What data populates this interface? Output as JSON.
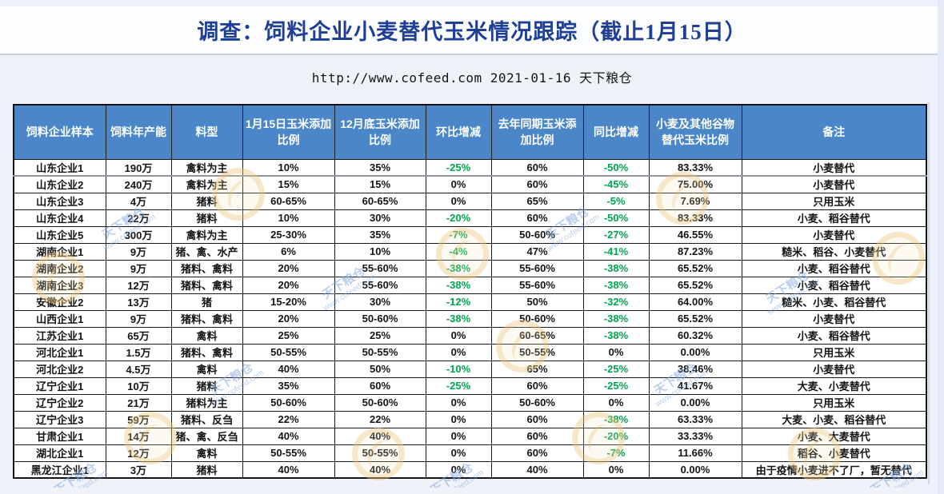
{
  "page": {
    "title": "调查：饲料企业小麦替代玉米情况跟踪（截止1月15日）",
    "subtitle": "http://www.cofeed.com  2021-01-16  天下粮仓"
  },
  "watermark": {
    "brand": "天下粮仓",
    "url": "www.cofeed.com"
  },
  "colors": {
    "header_bg": "#4A86C8",
    "negative_green": "#00A550",
    "title_blue": "#1E3F94"
  },
  "table": {
    "headers": [
      "饲料企业样本",
      "饲料年产能",
      "料型",
      "1月15日玉米添加比例",
      "12月底玉米添加比例",
      "环比增减",
      "去年同期玉米添加比例",
      "同比增减",
      "小麦及其他谷物替代玉米比例",
      "备注"
    ],
    "rows": [
      [
        "山东企业1",
        "190万",
        "禽料为主",
        "10%",
        "35%",
        "-25%",
        "60%",
        "-50%",
        "83.33%",
        "小麦替代"
      ],
      [
        "山东企业2",
        "240万",
        "禽料为主",
        "15%",
        "15%",
        "0%",
        "60%",
        "-45%",
        "75.00%",
        "小麦替代"
      ],
      [
        "山东企业3",
        "4万",
        "猪料",
        "60-65%",
        "60-65%",
        "0%",
        "65%",
        "-5%",
        "7.69%",
        "只用玉米"
      ],
      [
        "山东企业4",
        "22万",
        "猪料",
        "10%",
        "30%",
        "-20%",
        "60%",
        "-50%",
        "83.33%",
        "小麦、稻谷替代"
      ],
      [
        "山东企业5",
        "300万",
        "禽料为主",
        "25-30%",
        "35%",
        "-7%",
        "50-60%",
        "-27%",
        "46.55%",
        "小麦替代"
      ],
      [
        "湖南企业1",
        "9万",
        "猪、禽、水产",
        "6%",
        "10%",
        "-4%",
        "47%",
        "-41%",
        "87.23%",
        "糙米、稻谷、小麦替代"
      ],
      [
        "湖南企业2",
        "9万",
        "猪料、禽料",
        "20%",
        "55-60%",
        "-38%",
        "55-60%",
        "-38%",
        "65.52%",
        "小麦、稻谷替代"
      ],
      [
        "湖南企业3",
        "12万",
        "猪料、禽料",
        "20%",
        "55-60%",
        "-38%",
        "55-60%",
        "-38%",
        "65.52%",
        "小麦、稻谷替代"
      ],
      [
        "安徽企业2",
        "13万",
        "猪",
        "15-20%",
        "30%",
        "-12%",
        "50%",
        "-32%",
        "64.00%",
        "糙米、小麦、稻谷替代"
      ],
      [
        "山西企业1",
        "9万",
        "猪料、禽料",
        "20%",
        "50-60%",
        "-38%",
        "50-60%",
        "-38%",
        "65.52%",
        "小麦替代"
      ],
      [
        "江苏企业1",
        "65万",
        "禽料",
        "25%",
        "25%",
        "0%",
        "60-65%",
        "-38%",
        "60.32%",
        "小麦、稻谷替代"
      ],
      [
        "河北企业1",
        "1.5万",
        "猪料、禽料",
        "50-55%",
        "50-55%",
        "0%",
        "50-55%",
        "0%",
        "0.00%",
        "只用玉米"
      ],
      [
        "河北企业2",
        "4.5万",
        "禽料",
        "40%",
        "50%",
        "-10%",
        "65%",
        "-25%",
        "38.46%",
        "小麦替代"
      ],
      [
        "辽宁企业1",
        "10万",
        "猪料",
        "35%",
        "60%",
        "-25%",
        "60%",
        "-25%",
        "41.67%",
        "大麦、小麦替代"
      ],
      [
        "辽宁企业2",
        "21万",
        "猪料为主",
        "50-60%",
        "50-60%",
        "0%",
        "50-60%",
        "0%",
        "0.00%",
        "只用玉米"
      ],
      [
        "辽宁企业3",
        "59万",
        "猪料、反刍",
        "22%",
        "22%",
        "0%",
        "60%",
        "-38%",
        "63.33%",
        "大麦、小麦、稻谷替代"
      ],
      [
        "甘肃企业1",
        "14万",
        "猪、禽、反刍",
        "40%",
        "40%",
        "0%",
        "60%",
        "-20%",
        "33.33%",
        "小麦、大麦替代"
      ],
      [
        "湖北企业1",
        "12万",
        "禽料",
        "50-55%",
        "50-55%",
        "0%",
        "60%",
        "-7%",
        "11.66%",
        "稻谷、小麦替代"
      ],
      [
        "黑龙江企业1",
        "3万",
        "猪料",
        "40%",
        "40%",
        "0%",
        "40%",
        "0%",
        "0.00%",
        "由于疫情小麦进不了厂，暂无替代"
      ]
    ]
  }
}
